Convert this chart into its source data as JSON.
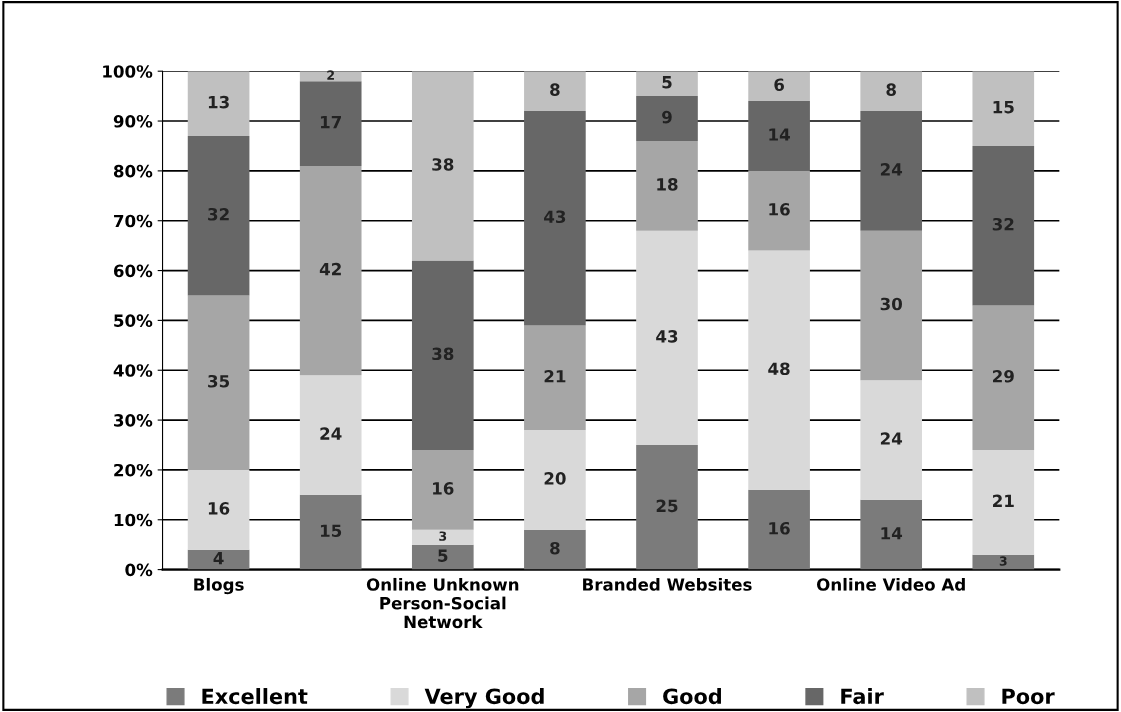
{
  "chart_data": {
    "type": "bar",
    "stacked": true,
    "data_labels": true,
    "grid": "y",
    "legend": "bottom",
    "categories": [
      "Blogs",
      null,
      "Online Unknown Person-Social Network",
      null,
      "Branded Websites",
      null,
      "Online Video Ad",
      null
    ],
    "series": [
      {
        "name": "Excellent",
        "color": "#7b7b7b",
        "values": [
          4,
          15,
          5,
          8,
          25,
          16,
          14,
          3
        ]
      },
      {
        "name": "Very Good",
        "color": "#d9d9d9",
        "values": [
          16,
          24,
          3,
          20,
          43,
          48,
          24,
          21
        ]
      },
      {
        "name": "Good",
        "color": "#a6a6a6",
        "values": [
          35,
          42,
          16,
          21,
          18,
          16,
          30,
          29
        ]
      },
      {
        "name": "Fair",
        "color": "#676767",
        "values": [
          32,
          17,
          38,
          43,
          9,
          14,
          24,
          32
        ]
      },
      {
        "name": "Poor",
        "color": "#c0c0c0",
        "values": [
          13,
          2,
          38,
          8,
          5,
          6,
          8,
          15
        ]
      }
    ],
    "ylim": [
      0,
      100
    ],
    "yticks": [
      {
        "value": 0,
        "label": "0%"
      },
      {
        "value": 10,
        "label": "10%"
      },
      {
        "value": 20,
        "label": "20%"
      },
      {
        "value": 30,
        "label": "30%"
      },
      {
        "value": 40,
        "label": "40%"
      },
      {
        "value": 50,
        "label": "50%"
      },
      {
        "value": 60,
        "label": "60%"
      },
      {
        "value": 70,
        "label": "70%"
      },
      {
        "value": 80,
        "label": "80%"
      },
      {
        "value": 90,
        "label": "90%"
      },
      {
        "value": 100,
        "label": "100%"
      }
    ]
  }
}
